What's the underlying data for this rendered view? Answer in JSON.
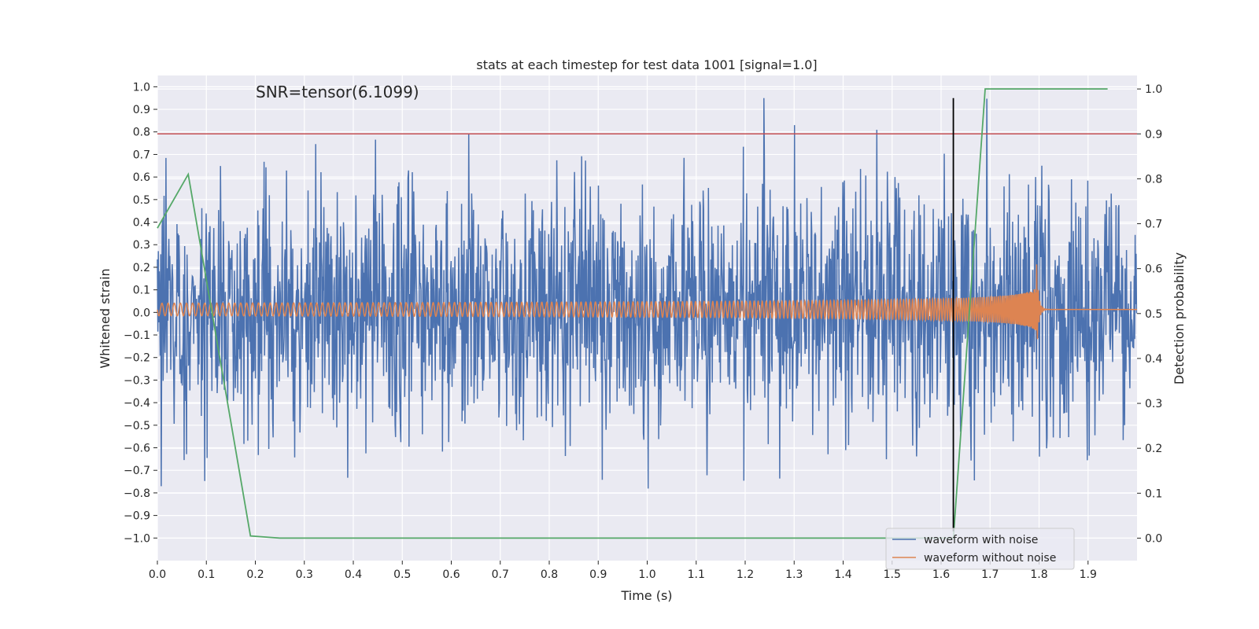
{
  "chart_data": {
    "type": "line",
    "title": "stats at each timestep for test data 1001 [signal=1.0]",
    "xlabel": "Time (s)",
    "ylabel": "Whitened strain",
    "y2label": "Detection probability",
    "annotation": "SNR=tensor(6.1099)",
    "xlim": [
      0,
      2.0
    ],
    "ylim": [
      -1.1,
      1.05
    ],
    "y2lim": [
      -0.05,
      1.03
    ],
    "xticks": [
      "0.0",
      "0.1",
      "0.2",
      "0.3",
      "0.4",
      "0.5",
      "0.6",
      "0.7",
      "0.8",
      "0.9",
      "1.0",
      "1.1",
      "1.2",
      "1.3",
      "1.4",
      "1.5",
      "1.6",
      "1.7",
      "1.8",
      "1.9"
    ],
    "yticks": [
      "1.0",
      "0.9",
      "0.8",
      "0.7",
      "0.6",
      "0.5",
      "0.4",
      "0.3",
      "0.2",
      "0.1",
      "0.0",
      "−0.1",
      "−0.2",
      "−0.3",
      "−0.4",
      "−0.5",
      "−0.6",
      "−0.7",
      "−0.8",
      "−0.9",
      "−1.0"
    ],
    "y2ticks": [
      "1.0",
      "0.9",
      "0.8",
      "0.7",
      "0.6",
      "0.5",
      "0.4",
      "0.3",
      "0.2",
      "0.1",
      "0.0"
    ],
    "grid": true,
    "legend_position": "lower-right",
    "series": [
      {
        "name": "waveform with noise",
        "color": "#4c72b0",
        "axis": "left",
        "kind": "noise",
        "samples": 2048,
        "amplitude_range": [
          -0.86,
          0.95
        ]
      },
      {
        "name": "waveform without noise",
        "color": "#dd8452",
        "axis": "left",
        "kind": "chirp",
        "merger_time": 1.795,
        "ringdown_level": 0.0
      },
      {
        "color": "#55a868",
        "axis": "right",
        "x": [
          0.0,
          0.063,
          0.19,
          0.25,
          1.625,
          1.69,
          1.94
        ],
        "y": [
          0.69,
          0.81,
          0.005,
          0.0,
          0.0,
          1.0,
          1.0
        ]
      }
    ],
    "threshold_line": {
      "color": "#c44e52",
      "axis": "right",
      "value": 0.9
    },
    "merger_line": {
      "color": "#000000",
      "x": 1.625,
      "y_range": [
        -0.97,
        0.95
      ]
    }
  }
}
